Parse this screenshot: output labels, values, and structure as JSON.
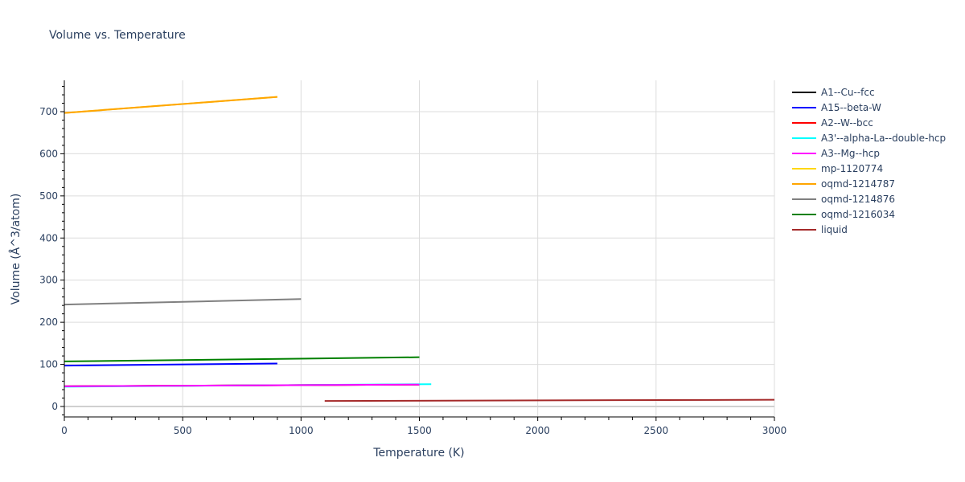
{
  "chart_data": {
    "type": "line",
    "title": "Volume vs. Temperature",
    "xlabel": "Temperature (K)",
    "ylabel": "Volume (Å^3/atom)",
    "xlim": [
      0,
      3000
    ],
    "ylim": [
      -25,
      775
    ],
    "xticks": [
      0,
      500,
      1000,
      1500,
      2000,
      2500,
      3000
    ],
    "yticks": [
      0,
      100,
      200,
      300,
      400,
      500,
      600,
      700
    ],
    "grid": true,
    "legend_position": "right",
    "series": [
      {
        "name": "A1--Cu--fcc",
        "color": "#000000",
        "x": [
          0,
          1500
        ],
        "y": [
          48,
          52
        ]
      },
      {
        "name": "A15--beta-W",
        "color": "#0000ff",
        "x": [
          0,
          900
        ],
        "y": [
          97,
          102
        ]
      },
      {
        "name": "A2--W--bcc",
        "color": "#ff0000",
        "x": [
          0,
          1500
        ],
        "y": [
          48,
          52
        ]
      },
      {
        "name": "A3'--alpha-La--double-hcp",
        "color": "#00ffff",
        "x": [
          0,
          1550
        ],
        "y": [
          47,
          53
        ]
      },
      {
        "name": "A3--Mg--hcp",
        "color": "#ff00ff",
        "x": [
          0,
          1500
        ],
        "y": [
          48,
          52
        ]
      },
      {
        "name": "mp-1120774",
        "color": "#ffd700",
        "x": [
          0,
          900
        ],
        "y": [
          697,
          735
        ]
      },
      {
        "name": "oqmd-1214787",
        "color": "#ffa500",
        "x": [
          0,
          900
        ],
        "y": [
          697,
          735
        ]
      },
      {
        "name": "oqmd-1214876",
        "color": "#808080",
        "x": [
          0,
          1000
        ],
        "y": [
          242,
          255
        ]
      },
      {
        "name": "oqmd-1216034",
        "color": "#008000",
        "x": [
          0,
          1500
        ],
        "y": [
          107,
          117
        ]
      },
      {
        "name": "liquid",
        "color": "#a52a2a",
        "x": [
          1100,
          3000
        ],
        "y": [
          13,
          16
        ]
      }
    ]
  }
}
